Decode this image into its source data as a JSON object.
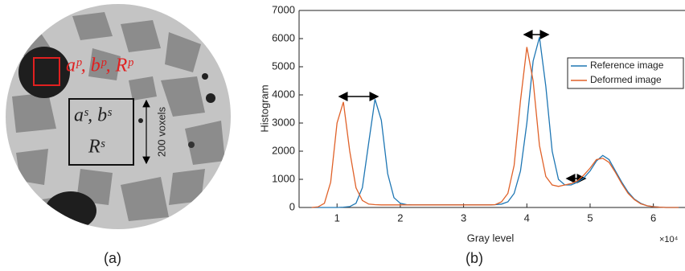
{
  "panel_a": {
    "red_label": "aᵖ, bᵖ, Rᵖ",
    "box_label_1": "aˢ, bˢ",
    "box_label_2": "Rˢ",
    "scale_label": "200 voxels",
    "caption": "(a)"
  },
  "chart_data": {
    "type": "line",
    "caption": "(b)",
    "xlabel": "Gray level",
    "ylabel": "Histogram",
    "x_multiplier": "×10⁴",
    "x": [
      0.6,
      0.7,
      0.8,
      0.9,
      1.0,
      1.1,
      1.2,
      1.3,
      1.4,
      1.5,
      1.6,
      1.7,
      1.8,
      1.9,
      2.0,
      2.1,
      2.2,
      2.3,
      2.4,
      2.5,
      2.6,
      2.7,
      2.8,
      2.9,
      3.0,
      3.1,
      3.2,
      3.3,
      3.4,
      3.5,
      3.6,
      3.7,
      3.8,
      3.9,
      4.0,
      4.1,
      4.2,
      4.3,
      4.4,
      4.5,
      4.6,
      4.7,
      4.8,
      4.9,
      5.0,
      5.1,
      5.2,
      5.3,
      5.4,
      5.5,
      5.6,
      5.7,
      5.8,
      5.9,
      6.0,
      6.1,
      6.2,
      6.3,
      6.4
    ],
    "series": [
      {
        "name": "Reference image",
        "color": "#1f77b4",
        "values": [
          0,
          0,
          0,
          0,
          0,
          10,
          30,
          150,
          700,
          2300,
          3850,
          3100,
          1200,
          350,
          150,
          100,
          90,
          90,
          90,
          90,
          90,
          90,
          90,
          90,
          90,
          90,
          90,
          90,
          90,
          100,
          120,
          200,
          500,
          1300,
          3000,
          5200,
          6050,
          4300,
          2000,
          1000,
          800,
          800,
          900,
          1050,
          1300,
          1650,
          1850,
          1700,
          1300,
          900,
          550,
          300,
          150,
          60,
          30,
          10,
          0,
          0,
          0
        ]
      },
      {
        "name": "Deformed image",
        "color": "#e0622a",
        "values": [
          0,
          20,
          150,
          900,
          3000,
          3750,
          2000,
          700,
          250,
          120,
          100,
          90,
          90,
          90,
          90,
          90,
          90,
          90,
          90,
          90,
          90,
          90,
          90,
          90,
          90,
          90,
          90,
          90,
          90,
          100,
          200,
          500,
          1500,
          3800,
          5700,
          4500,
          2200,
          1100,
          800,
          750,
          800,
          850,
          950,
          1150,
          1400,
          1700,
          1750,
          1600,
          1250,
          850,
          500,
          280,
          130,
          60,
          25,
          10,
          0,
          0,
          0
        ]
      }
    ],
    "xlim": [
      0.4,
      6.5
    ],
    "xticks": [
      1,
      2,
      3,
      4,
      5,
      6
    ],
    "ylim": [
      0,
      7000
    ],
    "yticks": [
      0,
      1000,
      2000,
      3000,
      4000,
      5000,
      6000,
      7000
    ],
    "legend": "upper-right"
  }
}
